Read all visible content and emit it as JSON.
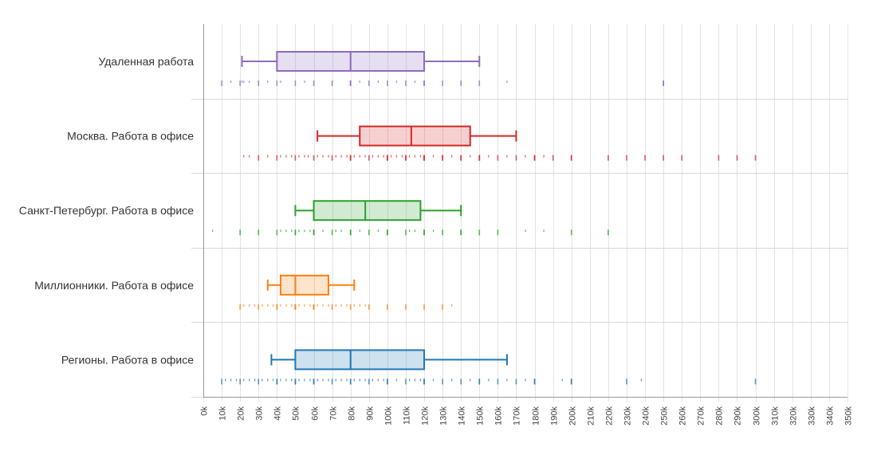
{
  "chart_data": {
    "type": "boxplot",
    "orientation": "horizontal",
    "xlim": [
      0,
      350000
    ],
    "tick_step": 10000,
    "tick_labels": [
      "0k",
      "10k",
      "20k",
      "30k",
      "40k",
      "50k",
      "60k",
      "70k",
      "80k",
      "90k",
      "100k",
      "110k",
      "120k",
      "130k",
      "140k",
      "150k",
      "160k",
      "170k",
      "180k",
      "190k",
      "200k",
      "210k",
      "220k",
      "230k",
      "240k",
      "250k",
      "260k",
      "270k",
      "280k",
      "290k",
      "300k",
      "310k",
      "320k",
      "330k",
      "340k",
      "350k"
    ],
    "grid": true,
    "series": [
      {
        "name": "Удаленная работа",
        "color": "#8e6bbf",
        "whisker_low": 21000,
        "q1": 40000,
        "median": 80000,
        "q3": 120000,
        "whisker_high": 150000,
        "points": [
          10000,
          15000,
          20000,
          21000,
          22000,
          25000,
          30000,
          35000,
          40000,
          42000,
          50000,
          55000,
          60000,
          70000,
          80000,
          80000,
          80000,
          85000,
          90000,
          95000,
          100000,
          105000,
          110000,
          115000,
          120000,
          120000,
          130000,
          140000,
          150000,
          165000,
          250000,
          250000
        ]
      },
      {
        "name": "Москва. Работа в офисе",
        "color": "#d62728",
        "whisker_low": 62000,
        "q1": 85000,
        "median": 113000,
        "q3": 145000,
        "whisker_high": 170000,
        "points": [
          22000,
          25000,
          30000,
          35000,
          40000,
          42000,
          45000,
          48000,
          50000,
          52000,
          55000,
          57000,
          60000,
          62000,
          65000,
          68000,
          70000,
          72000,
          75000,
          78000,
          80000,
          80000,
          80000,
          82000,
          85000,
          88000,
          90000,
          92000,
          95000,
          98000,
          100000,
          100000,
          100000,
          102000,
          105000,
          108000,
          110000,
          110000,
          112000,
          115000,
          118000,
          120000,
          120000,
          120000,
          125000,
          130000,
          130000,
          135000,
          140000,
          140000,
          145000,
          150000,
          150000,
          150000,
          155000,
          160000,
          165000,
          170000,
          175000,
          180000,
          180000,
          185000,
          190000,
          200000,
          200000,
          220000,
          230000,
          240000,
          250000,
          260000,
          280000,
          290000,
          300000
        ]
      },
      {
        "name": "Санкт-Петербург. Работа в офисе",
        "color": "#2ca02c",
        "whisker_low": 50000,
        "q1": 60000,
        "median": 88000,
        "q3": 118000,
        "whisker_high": 140000,
        "points": [
          5000,
          20000,
          30000,
          40000,
          42000,
          45000,
          48000,
          50000,
          50000,
          52000,
          55000,
          58000,
          60000,
          60000,
          65000,
          70000,
          72000,
          75000,
          80000,
          80000,
          85000,
          90000,
          95000,
          100000,
          100000,
          110000,
          112000,
          115000,
          120000,
          120000,
          125000,
          130000,
          140000,
          140000,
          150000,
          160000,
          175000,
          185000,
          200000,
          220000
        ]
      },
      {
        "name": "Миллионники. Работа в офисе",
        "color": "#ff7f0e",
        "whisker_low": 35000,
        "q1": 42000,
        "median": 50000,
        "q3": 68000,
        "whisker_high": 82000,
        "points": [
          20000,
          22000,
          25000,
          28000,
          30000,
          32000,
          35000,
          38000,
          40000,
          40000,
          42000,
          45000,
          48000,
          50000,
          50000,
          50000,
          52000,
          55000,
          58000,
          60000,
          60000,
          62000,
          65000,
          68000,
          70000,
          72000,
          75000,
          78000,
          80000,
          82000,
          85000,
          88000,
          90000,
          100000,
          110000,
          120000,
          130000,
          135000
        ]
      },
      {
        "name": "Регионы. Работа в офисе",
        "color": "#1f77b4",
        "whisker_low": 37000,
        "q1": 50000,
        "median": 80000,
        "q3": 120000,
        "whisker_high": 165000,
        "points": [
          10000,
          12000,
          15000,
          18000,
          20000,
          22000,
          25000,
          28000,
          30000,
          32000,
          35000,
          38000,
          40000,
          40000,
          42000,
          45000,
          48000,
          50000,
          50000,
          52000,
          55000,
          58000,
          60000,
          60000,
          62000,
          65000,
          68000,
          70000,
          72000,
          75000,
          78000,
          80000,
          80000,
          82000,
          85000,
          88000,
          90000,
          92000,
          95000,
          98000,
          100000,
          100000,
          105000,
          110000,
          112000,
          115000,
          118000,
          120000,
          120000,
          125000,
          130000,
          135000,
          140000,
          145000,
          150000,
          150000,
          155000,
          160000,
          165000,
          170000,
          175000,
          180000,
          180000,
          195000,
          200000,
          200000,
          230000,
          238000,
          300000
        ]
      }
    ]
  }
}
